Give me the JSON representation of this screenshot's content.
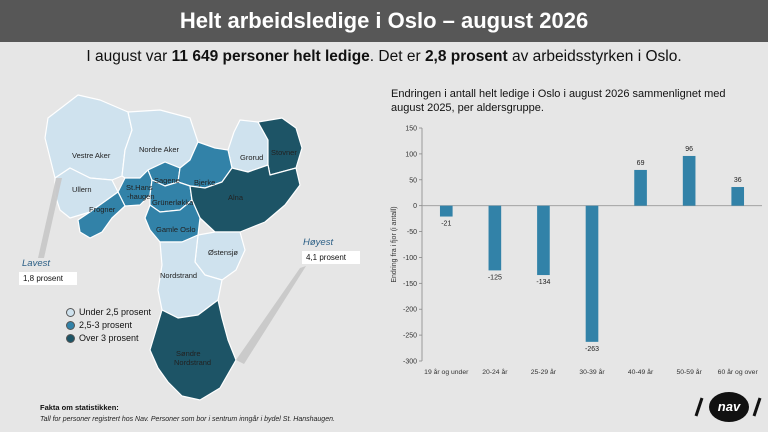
{
  "header": {
    "title": "Helt arbeidsledige i Oslo – august 2026"
  },
  "headline": {
    "pre": "I august var ",
    "bold1": "11 649 personer helt ledige",
    "mid": ". Det er ",
    "bold2": "2,8 prosent",
    "post": " av arbeidsstyrken i Oslo."
  },
  "map": {
    "districts": [
      {
        "name": "Vestre Aker",
        "category": "low"
      },
      {
        "name": "Nordre Aker",
        "category": "low"
      },
      {
        "name": "Grorud",
        "category": "low"
      },
      {
        "name": "Stovner",
        "category": "high"
      },
      {
        "name": "Ullern",
        "category": "low"
      },
      {
        "name": "St.Hans-haugen",
        "category": "mid"
      },
      {
        "name": "Sagene",
        "category": "mid"
      },
      {
        "name": "Bjerke",
        "category": "mid"
      },
      {
        "name": "Frogner",
        "category": "mid"
      },
      {
        "name": "Grünerløkka",
        "category": "mid"
      },
      {
        "name": "Alna",
        "category": "high"
      },
      {
        "name": "Gamle Oslo",
        "category": "mid"
      },
      {
        "name": "Østensjø",
        "category": "low"
      },
      {
        "name": "Nordstrand",
        "category": "low"
      },
      {
        "name": "Søndre Nordstrand",
        "category": "high"
      }
    ],
    "labels": {
      "vestre_aker": "Vestre Aker",
      "nordre_aker": "Nordre Aker",
      "grorud": "Grorud",
      "stovner": "Stovner",
      "ullern": "Ullern",
      "st_hans_1": "St.Hans",
      "st_hans_2": "-haugen",
      "sagene": "Sagene",
      "bjerke": "Bjerke",
      "frogner": "Frogner",
      "grunerlokka": "Grünerløkka",
      "alna": "Alna",
      "gamle_oslo": "Gamle Oslo",
      "ostensjo": "Østensjø",
      "nordstrand": "Nordstrand",
      "sondre_1": "Søndre",
      "sondre_2": "Nordstrand"
    },
    "colors": {
      "low": "#cfe2ee",
      "mid": "#3282a8",
      "high": "#1d5466"
    },
    "lavest": {
      "label": "Lavest",
      "value": "1,8 prosent"
    },
    "hoyest": {
      "label": "Høyest",
      "value": "4,1 prosent"
    },
    "legend": [
      {
        "label": "Under 2,5 prosent",
        "color": "#cfe2ee"
      },
      {
        "label": "2,5-3 prosent",
        "color": "#3282a8"
      },
      {
        "label": "Over 3 prosent",
        "color": "#1d5466"
      }
    ]
  },
  "chart_data": {
    "type": "bar",
    "title": "Endringen i antall helt ledige i Oslo i august 2026 sammenlignet med august 2025, per aldersgruppe.",
    "ylabel": "Endring fra i fjor (i antall)",
    "xlabel": "",
    "categories": [
      "19 år og under",
      "20-24 år",
      "25-29 år",
      "30-39 år",
      "40-49 år",
      "50-59 år",
      "60 år og over"
    ],
    "values": [
      -21,
      -125,
      -134,
      -263,
      69,
      96,
      36
    ],
    "data_labels": [
      "-21",
      "-125",
      "-134",
      "-263",
      "69",
      "96",
      "36"
    ],
    "ylim": [
      -300,
      150
    ],
    "yticks": [
      -300,
      -250,
      -200,
      -150,
      -100,
      -50,
      0,
      50,
      100,
      150
    ],
    "bar_color": "#3282a8",
    "grid": false,
    "legend": "none"
  },
  "footer": {
    "fakta_title": "Fakta om statistikken:",
    "fakta_text": "Tall for personer registrert hos Nav. Personer som bor i sentrum inngår i bydel St. Hanshaugen.",
    "logo_text": "nav"
  }
}
